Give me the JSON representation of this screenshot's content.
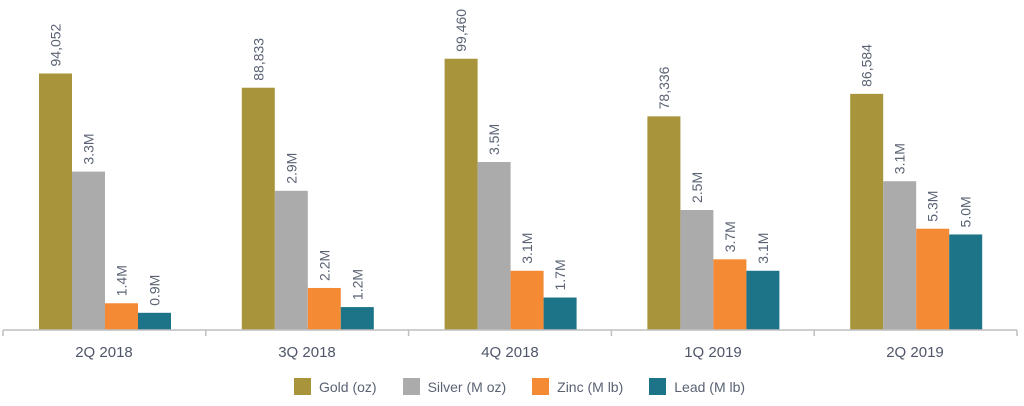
{
  "chart_data": {
    "type": "bar",
    "title": "",
    "xlabel": "",
    "ylabel": "",
    "grid": false,
    "legend_position": "bottom",
    "categories": [
      "2Q 2018",
      "3Q 2018",
      "4Q 2018",
      "1Q 2019",
      "2Q 2019"
    ],
    "series": [
      {
        "name": "Gold (oz)",
        "color": "#a8943a",
        "values": [
          94052,
          88833,
          99460,
          78336,
          86584
        ],
        "labels": [
          "94,052",
          "88,833",
          "99,460",
          "78,336",
          "86,584"
        ],
        "scale_max": 110000
      },
      {
        "name": "Silver (M oz)",
        "color": "#ababab",
        "values": [
          3.3,
          2.9,
          3.5,
          2.5,
          3.1
        ],
        "labels": [
          "3.3M",
          "2.9M",
          "3.5M",
          "2.5M",
          "3.1M"
        ],
        "scale_max": 6.25
      },
      {
        "name": "Zinc (M lb)",
        "color": "#f58a35",
        "values": [
          1.4,
          2.2,
          3.1,
          3.7,
          5.3
        ],
        "labels": [
          "1.4M",
          "2.2M",
          "3.1M",
          "3.7M",
          "5.3M"
        ],
        "scale_max": 15.7
      },
      {
        "name": "Lead (M lb)",
        "color": "#1d7488",
        "values": [
          0.9,
          1.2,
          1.7,
          3.1,
          5.0
        ],
        "labels": [
          "0.9M",
          "1.2M",
          "1.7M",
          "3.1M",
          "5.0M"
        ],
        "scale_max": 15.7
      }
    ]
  }
}
